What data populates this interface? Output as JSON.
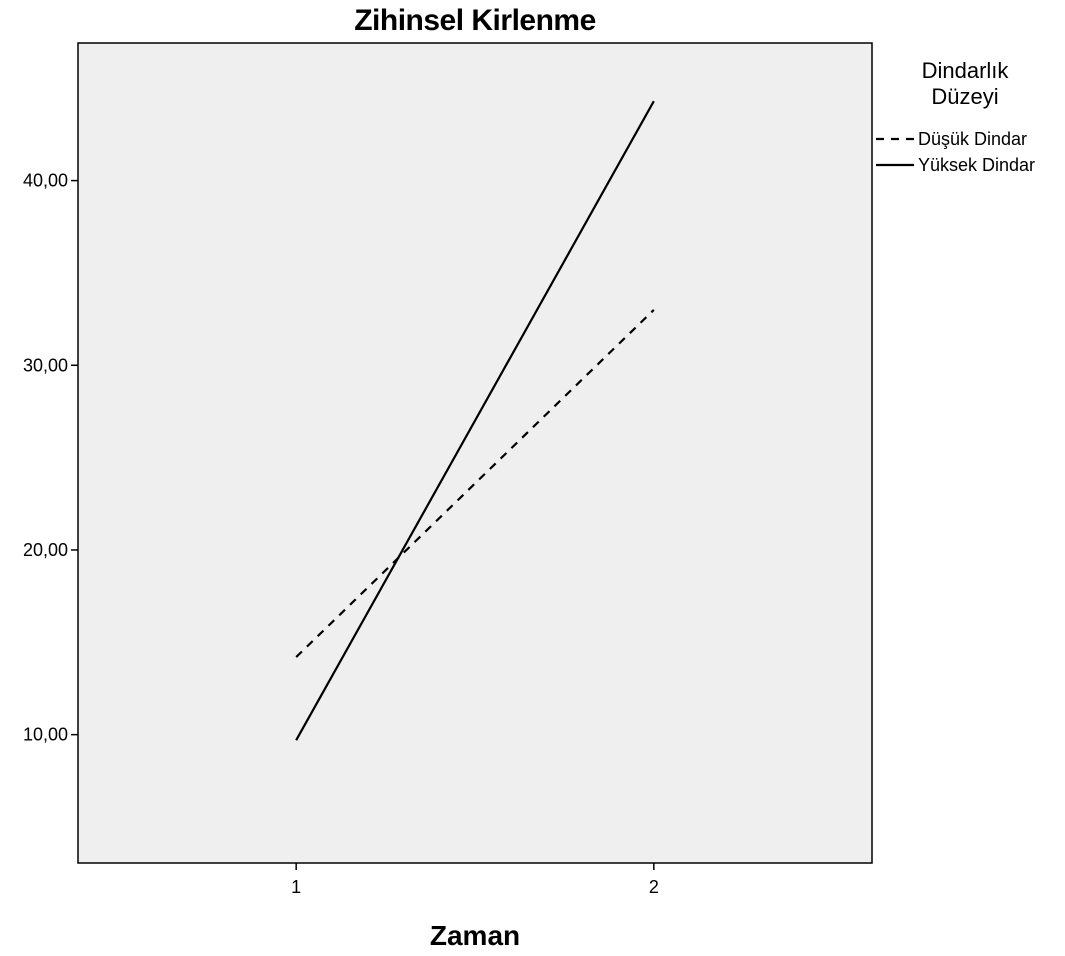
{
  "chart_data": {
    "type": "line",
    "title": "Zihinsel Kirlenme",
    "xlabel": "Zaman",
    "ylabel": "",
    "x": [
      "1",
      "2"
    ],
    "xlim": [
      0.39,
      2.61
    ],
    "ylim": [
      3.05,
      47.45
    ],
    "yticks": [
      "10,00",
      "20,00",
      "30,00",
      "40,00"
    ],
    "ytick_values": [
      10,
      20,
      30,
      40
    ],
    "grid": false,
    "legend": {
      "title_lines": [
        "Dindarlık",
        "Düzeyi"
      ],
      "placement": "right"
    },
    "series": [
      {
        "name": "Düşük Dindar",
        "values": [
          14.2,
          33.0
        ],
        "dash": "dashed",
        "color": "#000000"
      },
      {
        "name": "Yüksek Dindar",
        "values": [
          9.7,
          44.3
        ],
        "dash": "solid",
        "color": "#000000"
      }
    ],
    "plot_background": "#efefef"
  }
}
